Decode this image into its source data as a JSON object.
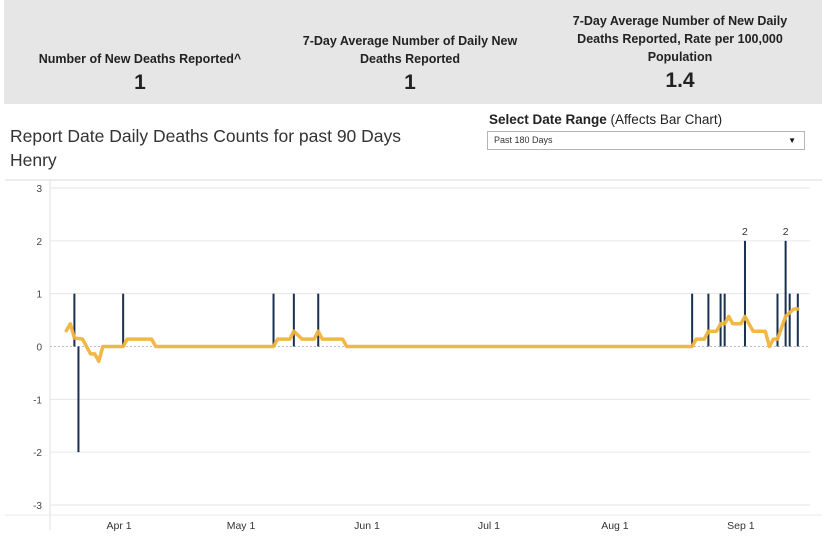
{
  "kpis": [
    {
      "label": "Number of New Deaths Reported^",
      "value": "1"
    },
    {
      "label": "7-Day Average Number of Daily New Deaths Reported",
      "value": "1"
    },
    {
      "label": "7-Day Average Number of New Daily Deaths Reported, Rate per 100,000 Population",
      "value": "1.4"
    }
  ],
  "chart_title": "Report Date Daily Deaths Counts for past 90 Days\nHenry",
  "date_range": {
    "label_bold": "Select Date Range",
    "label_rest": " (Affects Bar Chart)",
    "selected": "Past 180 Days"
  },
  "colors": {
    "bars": "#1b2f4e",
    "average_line": "#f0b43c",
    "grid": "#e6e6e6",
    "zero_line": "#bdbdbd"
  },
  "chart_data": {
    "type": "bar",
    "title": "Report Date Daily Deaths Counts for past 90 Days",
    "subtitle": "Henry",
    "ylim": [
      -3,
      3
    ],
    "yticks": [
      3,
      2,
      1,
      0,
      -1,
      -2,
      -3
    ],
    "xlim": [
      "2023-03-15",
      "2023-09-18"
    ],
    "xticks": [
      {
        "date": "2023-04-01",
        "label": "Apr 1"
      },
      {
        "date": "2023-05-01",
        "label": "May 1"
      },
      {
        "date": "2023-06-01",
        "label": "Jun 1"
      },
      {
        "date": "2023-07-01",
        "label": "Jul 1"
      },
      {
        "date": "2023-08-01",
        "label": "Aug 1"
      },
      {
        "date": "2023-09-01",
        "label": "Sep 1"
      }
    ],
    "grid": true,
    "bars": [
      {
        "date": "2023-03-21",
        "value": 1
      },
      {
        "date": "2023-03-22",
        "value": -2
      },
      {
        "date": "2023-04-02",
        "value": 1
      },
      {
        "date": "2023-05-09",
        "value": 1
      },
      {
        "date": "2023-05-14",
        "value": 1
      },
      {
        "date": "2023-05-20",
        "value": 1
      },
      {
        "date": "2023-08-20",
        "value": 1
      },
      {
        "date": "2023-08-24",
        "value": 1
      },
      {
        "date": "2023-08-27",
        "value": 1
      },
      {
        "date": "2023-08-28",
        "value": 1
      },
      {
        "date": "2023-09-02",
        "value": 2,
        "label": "2"
      },
      {
        "date": "2023-09-10",
        "value": 1
      },
      {
        "date": "2023-09-12",
        "value": 2,
        "label": "2"
      },
      {
        "date": "2023-09-13",
        "value": 1
      },
      {
        "date": "2023-09-15",
        "value": 1
      }
    ],
    "line_series": {
      "points": [
        {
          "date": "2023-03-19",
          "value": 0.3
        },
        {
          "date": "2023-03-20",
          "value": 0.43
        },
        {
          "date": "2023-03-21",
          "value": 0.16
        },
        {
          "date": "2023-03-23",
          "value": 0.14
        },
        {
          "date": "2023-03-24",
          "value": 0.0
        },
        {
          "date": "2023-03-25",
          "value": -0.14
        },
        {
          "date": "2023-03-26",
          "value": -0.14
        },
        {
          "date": "2023-03-27",
          "value": -0.28
        },
        {
          "date": "2023-03-28",
          "value": 0.0
        },
        {
          "date": "2023-04-02",
          "value": 0.0
        },
        {
          "date": "2023-04-03",
          "value": 0.14
        },
        {
          "date": "2023-04-09",
          "value": 0.14
        },
        {
          "date": "2023-04-10",
          "value": 0.0
        },
        {
          "date": "2023-05-09",
          "value": 0.0
        },
        {
          "date": "2023-05-10",
          "value": 0.14
        },
        {
          "date": "2023-05-13",
          "value": 0.14
        },
        {
          "date": "2023-05-14",
          "value": 0.29
        },
        {
          "date": "2023-05-16",
          "value": 0.14
        },
        {
          "date": "2023-05-19",
          "value": 0.14
        },
        {
          "date": "2023-05-20",
          "value": 0.29
        },
        {
          "date": "2023-05-21",
          "value": 0.14
        },
        {
          "date": "2023-05-26",
          "value": 0.14
        },
        {
          "date": "2023-05-27",
          "value": 0.0
        },
        {
          "date": "2023-08-20",
          "value": 0.0
        },
        {
          "date": "2023-08-21",
          "value": 0.14
        },
        {
          "date": "2023-08-23",
          "value": 0.14
        },
        {
          "date": "2023-08-24",
          "value": 0.29
        },
        {
          "date": "2023-08-26",
          "value": 0.29
        },
        {
          "date": "2023-08-27",
          "value": 0.43
        },
        {
          "date": "2023-08-28",
          "value": 0.43
        },
        {
          "date": "2023-08-29",
          "value": 0.57
        },
        {
          "date": "2023-08-30",
          "value": 0.43
        },
        {
          "date": "2023-09-01",
          "value": 0.43
        },
        {
          "date": "2023-09-02",
          "value": 0.57
        },
        {
          "date": "2023-09-03",
          "value": 0.43
        },
        {
          "date": "2023-09-04",
          "value": 0.29
        },
        {
          "date": "2023-09-07",
          "value": 0.29
        },
        {
          "date": "2023-09-08",
          "value": 0.0
        },
        {
          "date": "2023-09-09",
          "value": 0.14
        },
        {
          "date": "2023-09-10",
          "value": 0.14
        },
        {
          "date": "2023-09-12",
          "value": 0.57
        },
        {
          "date": "2023-09-14",
          "value": 0.71
        },
        {
          "date": "2023-09-15",
          "value": 0.71
        }
      ]
    }
  }
}
